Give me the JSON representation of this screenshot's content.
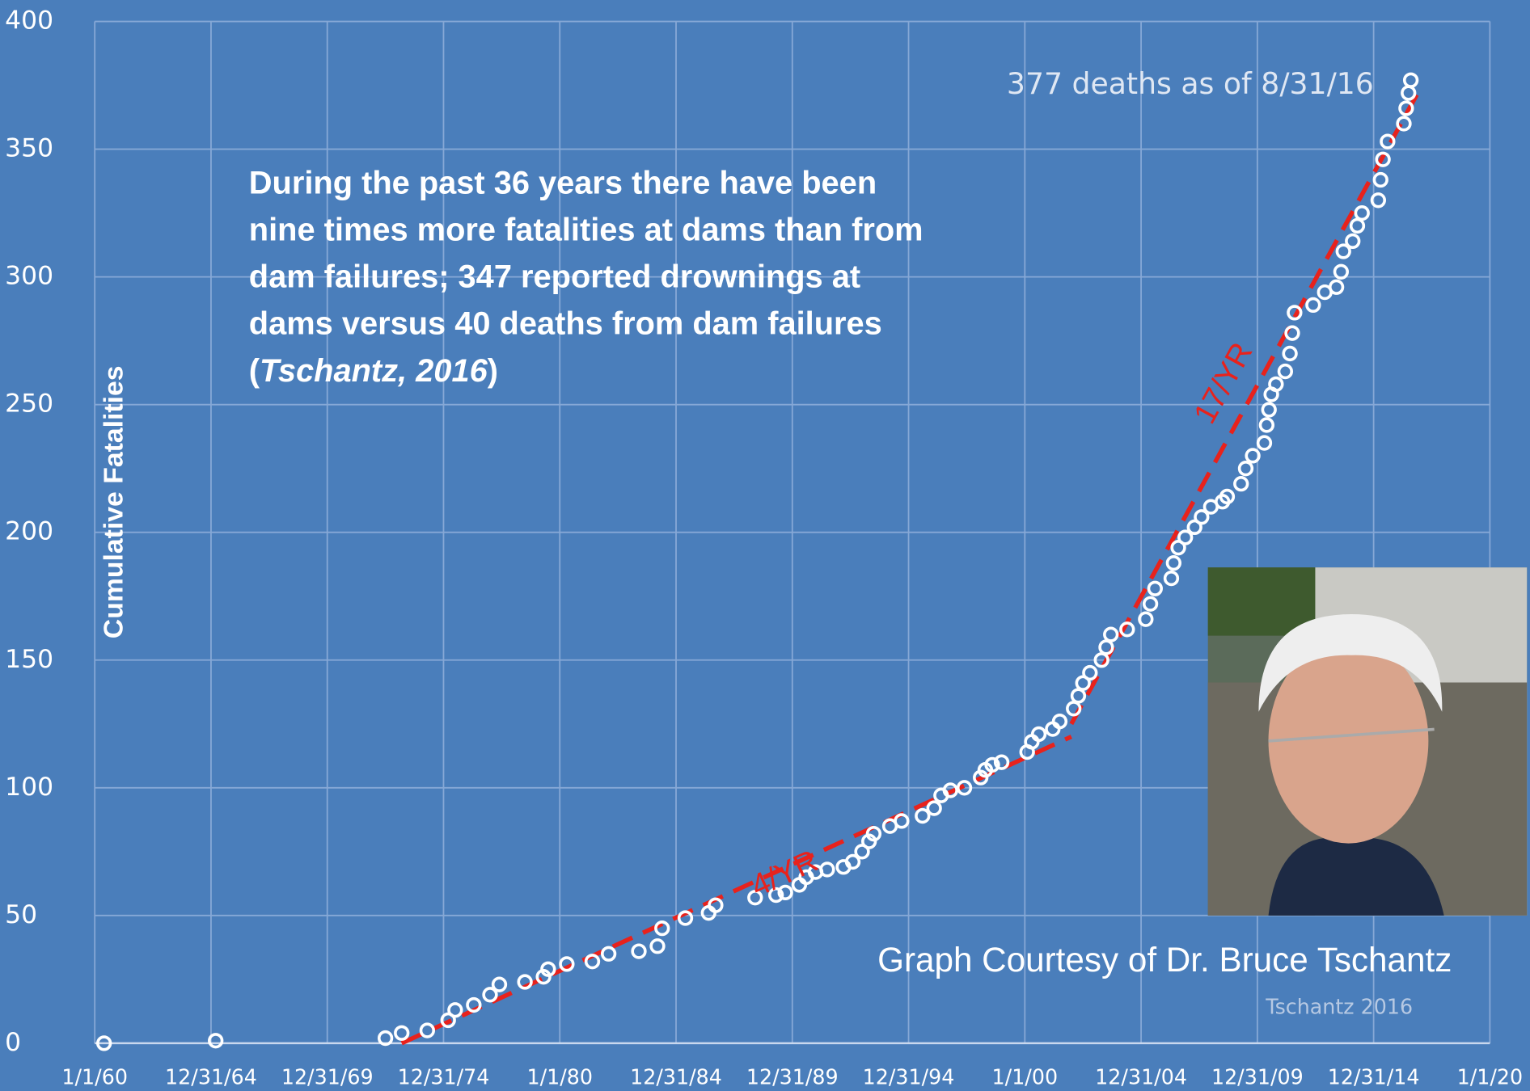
{
  "chart_data": {
    "type": "scatter",
    "y_label": "Cumulative Fatalities",
    "xlim": [
      1960,
      2020
    ],
    "ylim": [
      0,
      400
    ],
    "xticks": [
      {
        "value": 1960,
        "label": "1/1/60"
      },
      {
        "value": 1965,
        "label": "12/31/64"
      },
      {
        "value": 1970,
        "label": "12/31/69"
      },
      {
        "value": 1975,
        "label": "12/31/74"
      },
      {
        "value": 1980,
        "label": "1/1/80"
      },
      {
        "value": 1985,
        "label": "12/31/84"
      },
      {
        "value": 1990,
        "label": "12/31/89"
      },
      {
        "value": 1995,
        "label": "12/31/94"
      },
      {
        "value": 2000,
        "label": "1/1/00"
      },
      {
        "value": 2005,
        "label": "12/31/04"
      },
      {
        "value": 2010,
        "label": "12/31/09"
      },
      {
        "value": 2015,
        "label": "12/31/14"
      },
      {
        "value": 2020,
        "label": "1/1/20"
      }
    ],
    "yticks": [
      0,
      50,
      100,
      150,
      200,
      250,
      300,
      350,
      400
    ],
    "grid": true,
    "series": [
      {
        "color": "#ffffff",
        "x": [
          1960.4,
          1965.2,
          1972.5,
          1973.2,
          1974.3,
          1975.2,
          1975.5,
          1976.3,
          1977.0,
          1977.4,
          1978.5,
          1979.3,
          1979.5,
          1980.3,
          1981.4,
          1982.1,
          1983.4,
          1984.2,
          1984.4,
          1985.4,
          1986.4,
          1986.7,
          1988.4,
          1989.3,
          1989.7,
          1990.3,
          1990.6,
          1991.0,
          1991.5,
          1992.2,
          1992.6,
          1993.0,
          1993.3,
          1993.5,
          1994.2,
          1994.7,
          1995.6,
          1996.1,
          1996.4,
          1996.8,
          1997.4,
          1998.1,
          1998.3,
          1998.6,
          1999.0,
          2000.1,
          2000.3,
          2000.6,
          2001.2,
          2001.5,
          2002.1,
          2002.3,
          2002.5,
          2002.8,
          2003.3,
          2003.5,
          2003.7,
          2004.4,
          2005.2,
          2005.4,
          2005.6,
          2006.3,
          2006.4,
          2006.6,
          2006.9,
          2007.3,
          2007.6,
          2008.0,
          2008.5,
          2008.7,
          2009.3,
          2009.5,
          2009.8,
          2010.3,
          2010.4,
          2010.5,
          2010.6,
          2010.8,
          2011.2,
          2011.4,
          2011.5,
          2011.6,
          2012.4,
          2012.9,
          2013.4,
          2013.6,
          2013.7,
          2014.1,
          2014.3,
          2014.5,
          2015.2,
          2015.3,
          2015.4,
          2015.6,
          2016.3,
          2016.4,
          2016.5,
          2016.6
        ],
        "values": [
          0,
          1,
          2,
          4,
          5,
          9,
          13,
          15,
          19,
          23,
          24,
          26,
          29,
          31,
          32,
          35,
          36,
          38,
          45,
          49,
          51,
          54,
          57,
          58,
          59,
          62,
          65,
          67,
          68,
          69,
          71,
          75,
          79,
          82,
          85,
          87,
          89,
          92,
          97,
          99,
          100,
          104,
          107,
          109,
          110,
          114,
          118,
          121,
          123,
          126,
          131,
          136,
          141,
          145,
          150,
          155,
          160,
          162,
          166,
          172,
          178,
          182,
          188,
          194,
          198,
          202,
          206,
          210,
          212,
          214,
          219,
          225,
          230,
          235,
          242,
          248,
          254,
          258,
          263,
          270,
          278,
          286,
          289,
          294,
          296,
          302,
          310,
          314,
          320,
          325,
          330,
          338,
          346,
          353,
          360,
          366,
          372,
          377
        ]
      }
    ],
    "trend_lines": [
      {
        "label": "4/YR",
        "color": "#e8221c",
        "x": [
          1973.2,
          2002.0
        ],
        "values": [
          0,
          120
        ]
      },
      {
        "label": "17/YR",
        "color": "#e8221c",
        "x": [
          2002.0,
          2016.9
        ],
        "values": [
          125,
          372
        ]
      }
    ],
    "annotation": "377 deaths as of  8/31/16",
    "note": {
      "lines": [
        "During the past 36 years there have been",
        "nine times more fatalities at dams than from",
        "dam failures; 347 reported drownings at",
        "dams versus 40 deaths from dam failures"
      ],
      "citation_open": "(",
      "citation": "Tschantz, 2016",
      "citation_close": ")"
    },
    "credit": "Graph Courtesy of Dr. Bruce Tschantz",
    "watermark": "Tschantz 2016"
  }
}
